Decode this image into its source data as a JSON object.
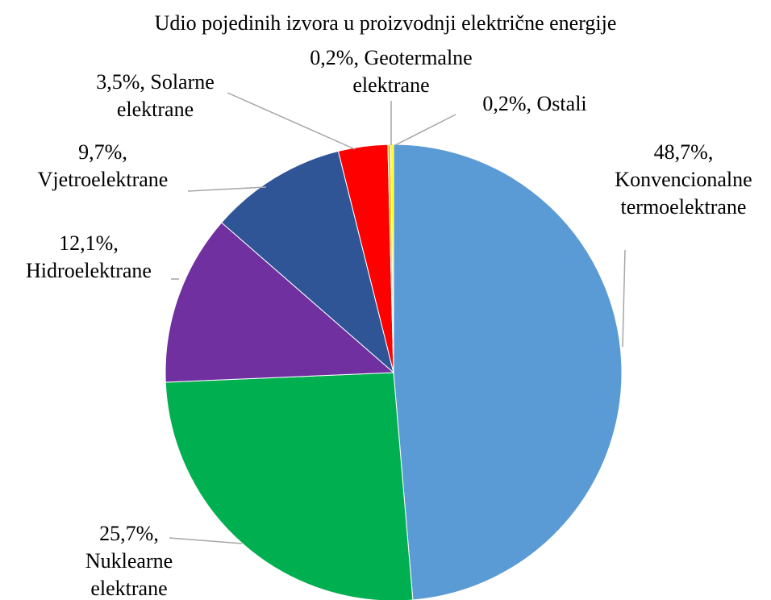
{
  "chart_data": {
    "type": "pie",
    "title": "Udio pojedinih izvora u proizvodnji električne energije",
    "categories": [
      "Konvencionalne termoelektrane",
      "Nuklearne elektrane",
      "Hidroelektrane",
      "Vjetroelektrane",
      "Solarne elektrane",
      "Geotermalne elektrane",
      "Ostali"
    ],
    "values": [
      48.7,
      25.7,
      12.1,
      9.7,
      3.5,
      0.2,
      0.2
    ],
    "value_labels": [
      "48,7%,",
      "25,7%,",
      "12,1%,",
      "9,7%,",
      "3,5%,",
      "0,2%,",
      "0,2%,"
    ],
    "colors": [
      "#5b9bd5",
      "#00b050",
      "#7030a0",
      "#2f5597",
      "#ff0000",
      "#ffc000",
      "#ffff00"
    ]
  }
}
